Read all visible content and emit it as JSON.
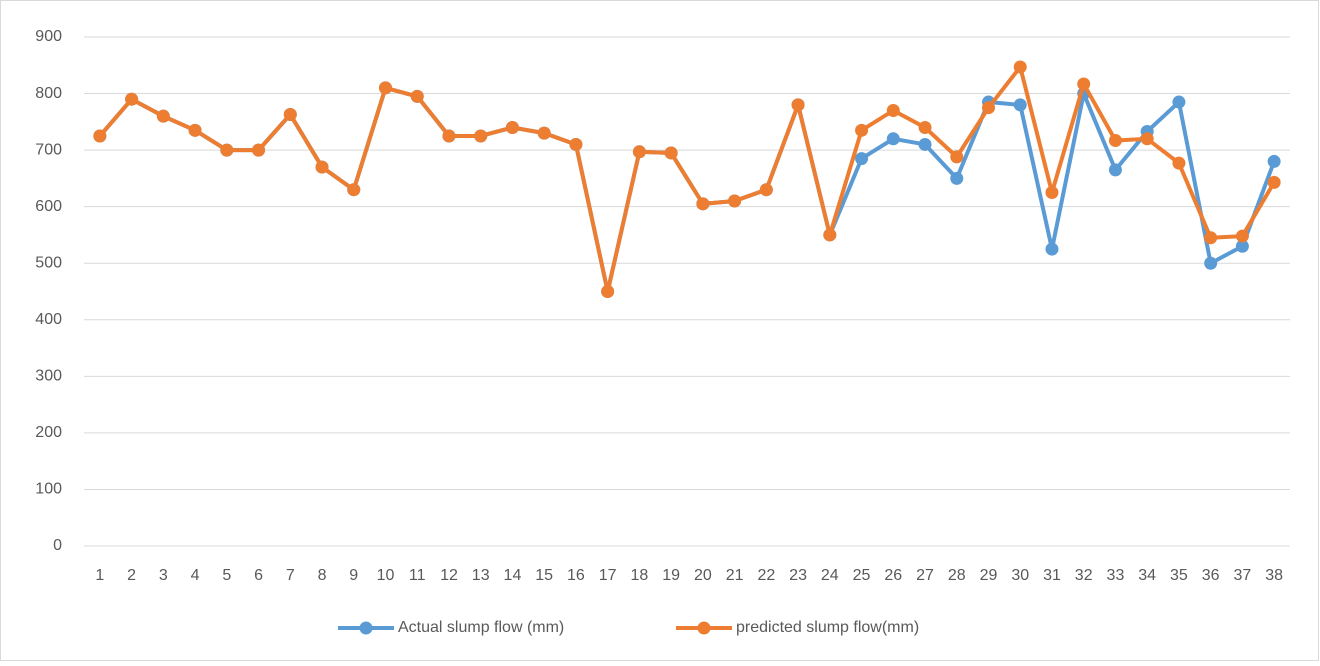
{
  "chart_data": {
    "type": "line",
    "categories": [
      "1",
      "2",
      "3",
      "4",
      "5",
      "6",
      "7",
      "8",
      "9",
      "10",
      "11",
      "12",
      "13",
      "14",
      "15",
      "16",
      "17",
      "18",
      "19",
      "20",
      "21",
      "22",
      "23",
      "24",
      "25",
      "26",
      "27",
      "28",
      "29",
      "30",
      "31",
      "32",
      "33",
      "34",
      "35",
      "36",
      "37",
      "38"
    ],
    "series": [
      {
        "name": "Actual slump flow (mm)",
        "color": "#5b9bd5",
        "values": [
          725,
          790,
          760,
          735,
          700,
          700,
          763,
          670,
          630,
          810,
          795,
          725,
          725,
          740,
          730,
          710,
          450,
          697,
          695,
          605,
          610,
          630,
          780,
          550,
          685,
          720,
          710,
          650,
          785,
          780,
          525,
          800,
          665,
          733,
          785,
          500,
          530,
          680
        ]
      },
      {
        "name": "predicted slump flow(mm)",
        "color": "#ed7d31",
        "values": [
          725,
          790,
          760,
          735,
          700,
          700,
          763,
          670,
          630,
          810,
          795,
          725,
          725,
          740,
          730,
          710,
          450,
          697,
          695,
          605,
          610,
          630,
          780,
          550,
          735,
          770,
          740,
          688,
          775,
          847,
          625,
          817,
          717,
          720,
          677,
          545,
          548,
          643
        ]
      }
    ],
    "ylim": [
      0,
      900
    ],
    "yticks": [
      0,
      100,
      200,
      300,
      400,
      500,
      600,
      700,
      800,
      900
    ],
    "grid": true,
    "legend": "bottom"
  }
}
